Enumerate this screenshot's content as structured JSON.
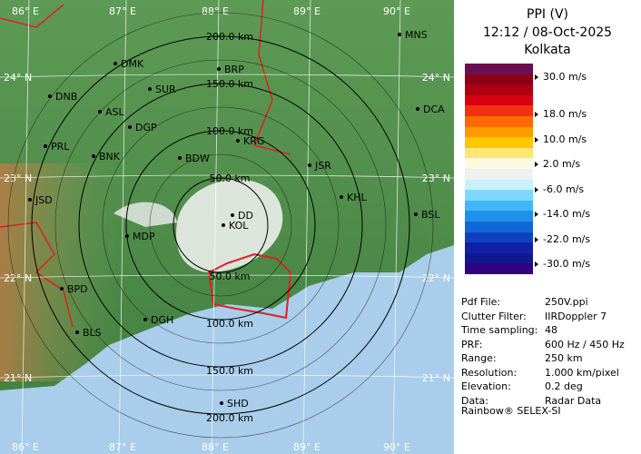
{
  "panel": {
    "title": "PPI (V)",
    "time": "12:12 / 08-Oct-2025",
    "station": "Kolkata",
    "scale_labels": [
      "30.0 m/s",
      "18.0 m/s",
      "10.0 m/s",
      "2.0 m/s",
      "-6.0 m/s",
      "-14.0 m/s",
      "-22.0 m/s",
      "-30.0 m/s"
    ],
    "metadata": [
      [
        "Pdf File:",
        "250V.ppi"
      ],
      [
        "Clutter Filter:",
        "IIRDoppler 7"
      ],
      [
        "Time sampling:",
        "48"
      ],
      [
        "PRF:",
        "600 Hz / 450 Hz"
      ],
      [
        "Range:",
        "250 km"
      ],
      [
        "Resolution:",
        "1.000 km/pixel"
      ],
      [
        "Elevation:",
        "0.2 deg"
      ],
      [
        "Data:",
        "Radar Data"
      ]
    ],
    "footer": "Rainbow® SELEX-SI"
  },
  "map": {
    "longitudes": [
      "86° E",
      "87° E",
      "88° E",
      "89° E",
      "90° E"
    ],
    "latitudes": [
      "24° N",
      "23° N",
      "22° N",
      "21° N"
    ],
    "range_rings": [
      "50.0 km",
      "100.0 km",
      "150.0 km",
      "200.0 km"
    ],
    "cities": [
      "MNS",
      "DMK",
      "BRP",
      "DNB",
      "SUR",
      "ASL",
      "DGP",
      "DCA",
      "KRG",
      "PRL",
      "BNK",
      "BDW",
      "JSR",
      "JSD",
      "KHL",
      "DD",
      "BSL",
      "MDP",
      "KOL",
      "BPD",
      "DGH",
      "BLS",
      "SHD"
    ]
  }
}
